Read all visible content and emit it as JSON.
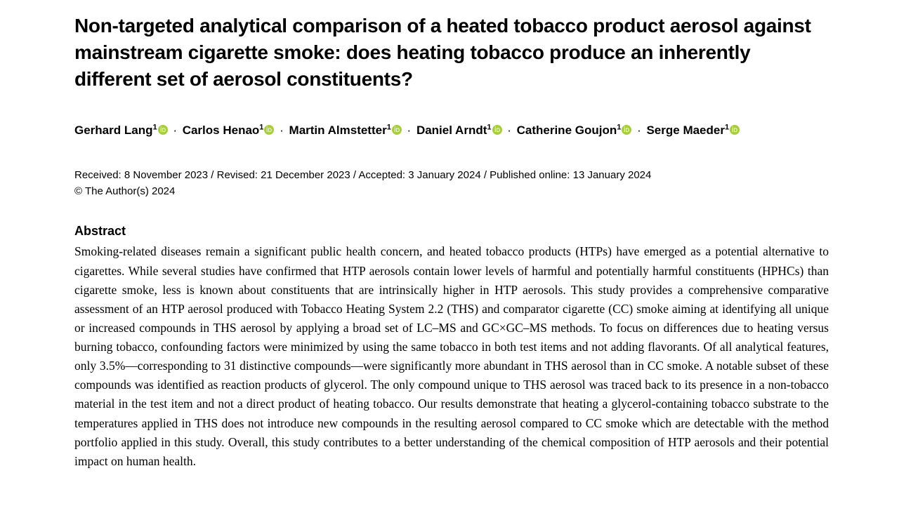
{
  "title": "Non-targeted analytical comparison of a heated tobacco product aerosol against mainstream cigarette smoke: does heating tobacco produce an inherently different set of aerosol constituents?",
  "authors": [
    {
      "name": "Gerhard Lang",
      "affil": "1"
    },
    {
      "name": "Carlos Henao",
      "affil": "1"
    },
    {
      "name": "Martin Almstetter",
      "affil": "1"
    },
    {
      "name": "Daniel Arndt",
      "affil": "1"
    },
    {
      "name": "Catherine Goujon",
      "affil": "1"
    },
    {
      "name": "Serge Maeder",
      "affil": "1"
    }
  ],
  "author_separator": "·",
  "orcid_color": "#a6ce39",
  "dates_line": "Received: 8 November 2023 / Revised: 21 December 2023 / Accepted: 3 January 2024 / Published online: 13 January 2024",
  "copyright": "© The Author(s) 2024",
  "abstract_heading": "Abstract",
  "abstract_body": "Smoking-related diseases remain a significant public health concern, and heated tobacco products (HTPs) have emerged as a potential alternative to cigarettes. While several studies have confirmed that HTP aerosols contain lower levels of harmful and potentially harmful constituents (HPHCs) than cigarette smoke, less is known about constituents that are intrinsically higher in HTP aerosols. This study provides a comprehensive comparative assessment of an HTP aerosol produced with Tobacco Heating System 2.2 (THS) and comparator cigarette (CC) smoke aiming at identifying all unique or increased compounds in THS aerosol by applying a broad set of LC–MS and GC×GC–MS methods. To focus on differences due to heating versus burning tobacco, confounding factors were minimized by using the same tobacco in both test items and not adding flavorants. Of all analytical features, only 3.5%—corresponding to 31 distinctive compounds—were significantly more abundant in THS aerosol than in CC smoke. A notable subset of these compounds was identified as reaction products of glycerol. The only compound unique to THS aerosol was traced back to its presence in a non-tobacco material in the test item and not a direct product of heating tobacco. Our results demonstrate that heating a glycerol-containing tobacco substrate to the temperatures applied in THS does not introduce new compounds in the resulting aerosol compared to CC smoke which are detectable with the method portfolio applied in this study. Overall, this study contributes to a better understanding of the chemical composition of HTP aerosols and their potential impact on human health."
}
